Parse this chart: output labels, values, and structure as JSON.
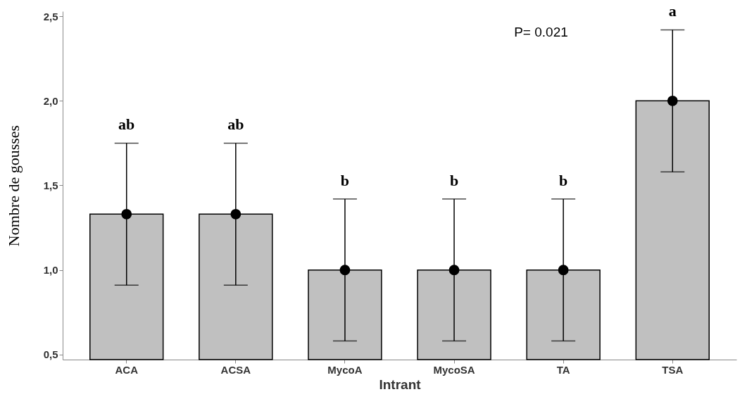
{
  "chart_data": {
    "type": "bar",
    "xlabel": "Intrant",
    "ylabel": "Nombre de gousses",
    "categories": [
      "ACA",
      "ACSA",
      "MycoA",
      "MycoSA",
      "TA",
      "TSA"
    ],
    "series": [
      {
        "color": "#c0c0c0",
        "values": [
          1.33,
          1.33,
          1.0,
          1.0,
          1.0,
          2.0
        ],
        "errors": [
          0.42,
          0.42,
          0.42,
          0.42,
          0.42,
          0.42
        ]
      },
      {
        "type": "scatter",
        "color": "#000000",
        "x": [
          "ACA",
          "ACSA",
          "MycoA",
          "MycoSA",
          "TA",
          "TSA"
        ],
        "values": [
          1.33,
          1.33,
          1.0,
          1.0,
          1.0,
          2.0
        ]
      }
    ],
    "ylim": [
      0.47,
      2.53
    ],
    "yticks": [
      {
        "value": 0.5,
        "label": "0,5"
      },
      {
        "value": 1.0,
        "label": "1,0"
      },
      {
        "value": 1.5,
        "label": "1,5"
      },
      {
        "value": 2.0,
        "label": "2,0"
      },
      {
        "value": 2.5,
        "label": "2,5"
      }
    ],
    "marker": "circle",
    "annotations": [
      {
        "text": "ab",
        "x": "ACA",
        "y": 1.75
      },
      {
        "text": "ab",
        "x": "ACSA",
        "y": 1.75
      },
      {
        "text": "b",
        "x": "MycoA",
        "y": 1.42
      },
      {
        "text": "b",
        "x": "MycoSA",
        "y": 1.42
      },
      {
        "text": "b",
        "x": "TA",
        "y": 1.42
      },
      {
        "text": "a",
        "x": "TSA",
        "y": 2.42
      },
      "P= 0.021"
    ]
  }
}
